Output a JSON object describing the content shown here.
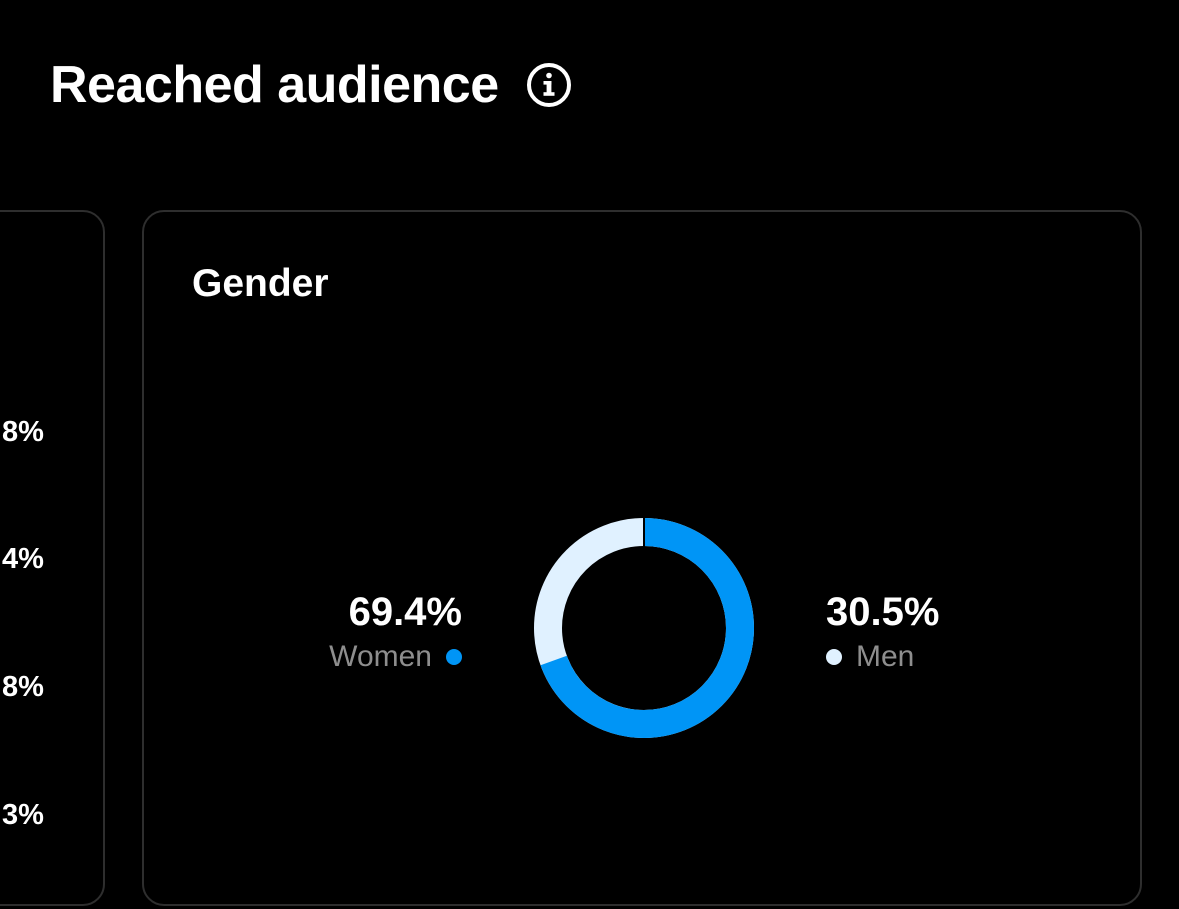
{
  "header": {
    "title": "Reached audience",
    "info_icon": "info-circle-icon"
  },
  "left_card": {
    "percentages": [
      "8%",
      "4%",
      "8%",
      "3%"
    ]
  },
  "gender_card": {
    "title": "Gender",
    "women": {
      "value": "69.4%",
      "label": "Women",
      "color": "#0095f6"
    },
    "men": {
      "value": "30.5%",
      "label": "Men",
      "color": "#e0f1ff"
    }
  },
  "chart_data": {
    "type": "pie",
    "categories": [
      "Women",
      "Men"
    ],
    "values": [
      69.4,
      30.5
    ],
    "colors": [
      "#0095f6",
      "#e0f1ff"
    ],
    "title": "Gender"
  }
}
